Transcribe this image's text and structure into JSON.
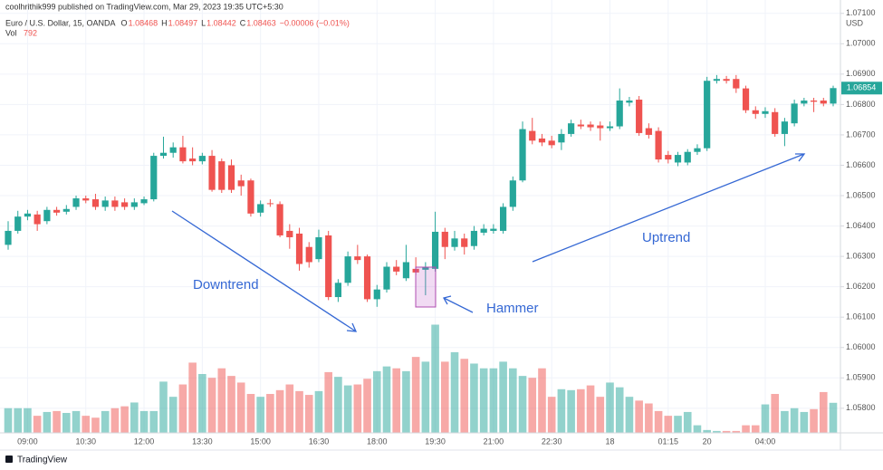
{
  "header": {
    "published": "coolhrithik999 published on TradingView.com, Mar 29, 2023 19:35 UTC+5:30",
    "symbol": "Euro / U.S. Dollar, 15, OANDA",
    "ohlc": [
      {
        "label": "O",
        "value": "1.08468"
      },
      {
        "label": "H",
        "value": "1.08497"
      },
      {
        "label": "L",
        "value": "1.08442"
      },
      {
        "label": "C",
        "value": "1.08463"
      }
    ],
    "change": "−0.00006 (−0.01%)",
    "volume_label": "Vol"
  },
  "footer": "TradingView",
  "chart_data": {
    "type": "candlestick",
    "axis_unit": "USD",
    "up_color": "#26a69a",
    "down_color": "#ef5350",
    "grid": true,
    "ylim": [
      1.05719,
      1.07144
    ],
    "yticks": [
      {
        "value": 1.058,
        "label": "1.05800"
      },
      {
        "value": 1.059,
        "label": "1.05900"
      },
      {
        "value": 1.06,
        "label": "1.06000"
      },
      {
        "value": 1.061,
        "label": "1.06100"
      },
      {
        "value": 1.062,
        "label": "1.06200"
      },
      {
        "value": 1.063,
        "label": "1.06300"
      },
      {
        "value": 1.064,
        "label": "1.06400"
      },
      {
        "value": 1.065,
        "label": "1.06500"
      },
      {
        "value": 1.066,
        "label": "1.06600"
      },
      {
        "value": 1.067,
        "label": "1.06700"
      },
      {
        "value": 1.068,
        "label": "1.06800"
      },
      {
        "value": 1.069,
        "label": "1.06900"
      },
      {
        "value": 1.07,
        "label": "1.07000"
      },
      {
        "value": 1.071,
        "label": "1.07100"
      }
    ],
    "xticks": [
      {
        "value": 2,
        "label": "09:00"
      },
      {
        "value": 8,
        "label": "10:30"
      },
      {
        "value": 14,
        "label": "12:00"
      },
      {
        "value": 20,
        "label": "13:30"
      },
      {
        "value": 26,
        "label": "15:00"
      },
      {
        "value": 32,
        "label": "16:30"
      },
      {
        "value": 38,
        "label": "18:00"
      },
      {
        "value": 44,
        "label": "19:30"
      },
      {
        "value": 50,
        "label": "21:00"
      },
      {
        "value": 56,
        "label": "22:30"
      },
      {
        "value": 62,
        "label": "18"
      },
      {
        "value": 68,
        "label": "01:15"
      },
      {
        "value": 72,
        "label": "20"
      },
      {
        "value": 78,
        "label": "04:00"
      }
    ],
    "volume_lim": [
      0,
      11400
    ],
    "open": [
      1.06338,
      1.06384,
      1.06431,
      1.06438,
      1.06416,
      1.06453,
      1.06447,
      1.06463,
      1.06491,
      1.06488,
      1.06463,
      1.06484,
      1.06478,
      1.06463,
      1.06475,
      1.06488,
      1.06631,
      1.06641,
      1.06659,
      1.06622,
      1.06613,
      1.06631,
      1.06613,
      1.066,
      1.0655,
      1.0655,
      1.06444,
      1.06475,
      1.06472,
      1.06384,
      1.06375,
      1.06331,
      1.06291,
      1.06369,
      1.06166,
      1.06213,
      1.063,
      1.063,
      1.06159,
      1.06191,
      1.06266,
      1.06228,
      1.06259,
      1.06256,
      1.06259,
      1.06381,
      1.06331,
      1.06359,
      1.06334,
      1.06378,
      1.06384,
      1.06384,
      1.06463,
      1.0655,
      1.06713,
      1.06688,
      1.06681,
      1.06675,
      1.06703,
      1.06734,
      1.06734,
      1.06731,
      1.06722,
      1.06728,
      1.06806,
      1.06816,
      1.06722,
      1.06713,
      1.06634,
      1.06609,
      1.06609,
      1.06644,
      1.06656,
      1.06878,
      1.06884,
      1.06884,
      1.06853,
      1.06781,
      1.06769,
      1.06775,
      1.06703,
      1.06738,
      1.06803,
      1.06813,
      1.06813,
      1.06803
    ],
    "high": [
      1.06416,
      1.0645,
      1.06453,
      1.0645,
      1.06463,
      1.06463,
      1.06469,
      1.065,
      1.065,
      1.06506,
      1.06497,
      1.06497,
      1.06491,
      1.06491,
      1.06497,
      1.06641,
      1.06694,
      1.06675,
      1.06697,
      1.06659,
      1.06641,
      1.0665,
      1.06622,
      1.06619,
      1.06569,
      1.06556,
      1.06484,
      1.06488,
      1.06481,
      1.06406,
      1.06394,
      1.06347,
      1.06388,
      1.06384,
      1.06225,
      1.06316,
      1.06338,
      1.06306,
      1.06206,
      1.06281,
      1.06288,
      1.06338,
      1.06297,
      1.06281,
      1.06447,
      1.06394,
      1.06384,
      1.06375,
      1.064,
      1.06406,
      1.06406,
      1.06475,
      1.06563,
      1.06744,
      1.06756,
      1.06703,
      1.06697,
      1.06719,
      1.0675,
      1.0675,
      1.06744,
      1.06744,
      1.06744,
      1.06853,
      1.06825,
      1.06828,
      1.06738,
      1.06725,
      1.06647,
      1.06644,
      1.06653,
      1.06669,
      1.06891,
      1.06897,
      1.06894,
      1.06897,
      1.06862,
      1.06794,
      1.06791,
      1.06788,
      1.06756,
      1.06816,
      1.06822,
      1.06822,
      1.06822,
      1.06862
    ],
    "low": [
      1.06322,
      1.06375,
      1.06419,
      1.06384,
      1.06406,
      1.06434,
      1.06438,
      1.06453,
      1.06475,
      1.06453,
      1.0645,
      1.0645,
      1.06453,
      1.06453,
      1.06469,
      1.06481,
      1.06622,
      1.06625,
      1.06606,
      1.066,
      1.06603,
      1.06513,
      1.06509,
      1.06509,
      1.065,
      1.06431,
      1.06431,
      1.06463,
      1.06363,
      1.06325,
      1.06253,
      1.06263,
      1.06281,
      1.06156,
      1.0615,
      1.06203,
      1.06275,
      1.0615,
      1.06134,
      1.06181,
      1.06238,
      1.06219,
      1.06238,
      1.06172,
      1.0625,
      1.06291,
      1.06319,
      1.06306,
      1.06322,
      1.06369,
      1.06375,
      1.06375,
      1.0645,
      1.06544,
      1.06669,
      1.06663,
      1.06656,
      1.0665,
      1.06694,
      1.06719,
      1.06713,
      1.06681,
      1.06713,
      1.06719,
      1.06794,
      1.06697,
      1.06688,
      1.06609,
      1.06606,
      1.06597,
      1.066,
      1.06634,
      1.06647,
      1.06869,
      1.06869,
      1.06838,
      1.06772,
      1.06753,
      1.06756,
      1.06694,
      1.06663,
      1.06728,
      1.06794,
      1.06775,
      1.06794,
      1.06794
    ],
    "close": [
      1.06384,
      1.06431,
      1.06441,
      1.06406,
      1.06453,
      1.06444,
      1.06456,
      1.06491,
      1.06484,
      1.06463,
      1.06484,
      1.06463,
      1.06463,
      1.06478,
      1.06488,
      1.06631,
      1.06641,
      1.06659,
      1.06613,
      1.06613,
      1.06631,
      1.06519,
      1.06519,
      1.06519,
      1.06531,
      1.06441,
      1.06472,
      1.06472,
      1.06369,
      1.06363,
      1.06275,
      1.06281,
      1.06363,
      1.06166,
      1.06213,
      1.063,
      1.06288,
      1.06159,
      1.06191,
      1.06266,
      1.0625,
      1.06281,
      1.06247,
      1.06266,
      1.06381,
      1.06331,
      1.06359,
      1.06331,
      1.06384,
      1.06391,
      1.06391,
      1.06463,
      1.0655,
      1.06719,
      1.06681,
      1.06675,
      1.06666,
      1.06703,
      1.06738,
      1.06728,
      1.06725,
      1.06722,
      1.06728,
      1.06813,
      1.06813,
      1.06706,
      1.067,
      1.06619,
      1.06619,
      1.06634,
      1.06644,
      1.06656,
      1.06878,
      1.06884,
      1.06878,
      1.06853,
      1.06781,
      1.06769,
      1.06778,
      1.06703,
      1.06744,
      1.06803,
      1.06813,
      1.06809,
      1.06803,
      1.06854
    ],
    "volume": [
      650,
      650,
      650,
      450,
      550,
      575,
      525,
      575,
      450,
      400,
      575,
      650,
      700,
      800,
      575,
      575,
      1350,
      950,
      1275,
      1850,
      1550,
      1450,
      1700,
      1500,
      1325,
      1025,
      950,
      1025,
      1125,
      1275,
      1100,
      1000,
      1100,
      1600,
      1475,
      1250,
      1275,
      1425,
      1625,
      1750,
      1700,
      1625,
      2000,
      1875,
      2850,
      1875,
      2125,
      1950,
      1825,
      1700,
      1700,
      1875,
      1700,
      1500,
      1450,
      1700,
      950,
      1150,
      1125,
      1150,
      1250,
      950,
      1325,
      1200,
      950,
      850,
      775,
      575,
      450,
      450,
      550,
      200,
      75,
      50,
      50,
      50,
      200,
      200,
      750,
      1025,
      575,
      650,
      550,
      625,
      1075,
      792
    ],
    "annotations": {
      "downtrend": "Downtrend",
      "hammer": "Hammer",
      "uptrend": "Uptrend"
    }
  }
}
